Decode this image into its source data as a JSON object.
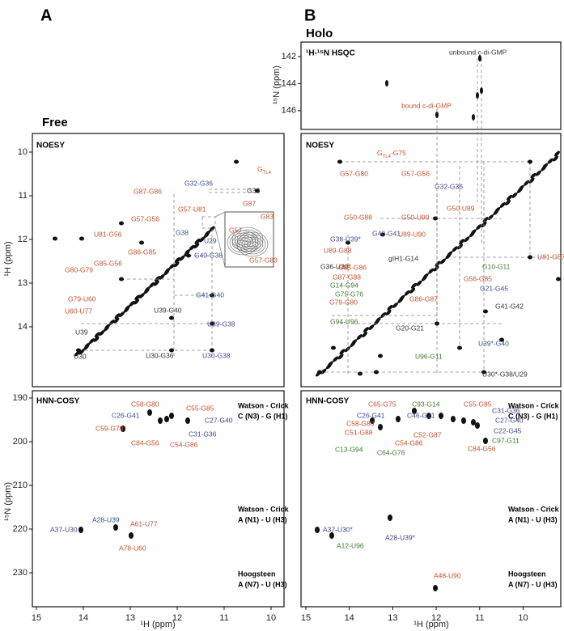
{
  "panels": [
    {
      "letter": "A",
      "title": "Free",
      "x_label": "¹H (ppm)",
      "xticks": [
        15,
        14,
        13,
        12,
        11,
        10
      ],
      "spectra": [
        {
          "name": "NOESY",
          "y_label": "¹H (ppm)",
          "yticks": [
            10,
            11,
            12,
            13,
            14
          ],
          "labels": [
            {
              "text": "G",
              "sub": "TL4"
            },
            "G32-G36",
            "G32",
            "G87-G86",
            "G87",
            "G57-U81",
            "G38",
            "G57",
            "G83",
            "G57-G83",
            "U81-G56",
            "G57-G56",
            "G86-G85",
            "U29",
            "G40-G38",
            "G85-G56",
            "G80-G79",
            "G41-G40",
            "G79-U60",
            "U60-U77",
            "U39-G40",
            "U39-G38",
            "U39",
            "U30-G36",
            "U30-G38",
            "U30"
          ]
        },
        {
          "name": "HNN-COSY",
          "y_label": "¹⁵N (ppm)",
          "yticks": [
            190,
            200,
            210,
            220,
            230
          ],
          "pair_types": [
            [
              "Watson - Crick",
              "C (N3) - G (H1)"
            ],
            [
              "Watson - Crick",
              "A (N1) - U (H3)"
            ],
            [
              "Hoogsteen",
              "A (N7) - U (H3)"
            ]
          ],
          "labels": [
            "C58-G80",
            "C55-G85",
            "C26-G41",
            "C27-G40",
            "C59-G79",
            "C31-G36",
            "C84-G56",
            "C54-G86",
            "A28-U39",
            "A61-U77",
            "A37-U30",
            "A78-U60"
          ]
        }
      ]
    },
    {
      "letter": "B",
      "title": "Holo",
      "x_label": "¹H (ppm)",
      "xticks": [
        15,
        14,
        13,
        12,
        11,
        10
      ],
      "spectra": [
        {
          "name": "¹H-¹⁵N HSQC",
          "y_label": "¹⁵N (ppm)",
          "yticks": [
            142,
            144,
            146
          ],
          "labels": [
            "unbound c-di-GMP",
            "bound c-di-GMP"
          ]
        },
        {
          "name": "NOESY",
          "labels": [
            {
              "text": "G",
              "sub": "TL4",
              "tail": "-G75"
            },
            "G57-G80",
            "G57-G56",
            "G32-G36",
            "G50-G88",
            "G50-U90",
            "G50-U89",
            "G38-U39*",
            "G40-G41",
            "U89-U90",
            "U81-G57",
            "U89-G88",
            "G36-U30*",
            "gIH1-G14",
            "G10-G11",
            "G85-G86",
            "G56-G85",
            "G87-G88",
            "G14-G94",
            "G21-G45",
            "G75-G76",
            "G86-G87",
            "G79-G80",
            "G41-G42",
            "G94-U96",
            "G20-G21",
            "U39*-G40",
            "U96-G11",
            "U30*-G38/U29"
          ]
        },
        {
          "name": "HNN-COSY",
          "pair_types": [
            [
              "Watson - Crick",
              "C (N3) - G (H1)"
            ],
            [
              "Watson - Crick",
              "A (N1) - U (H3)"
            ],
            [
              "Hoogsteen",
              "A (N7) - U (H3)"
            ]
          ],
          "labels": [
            "C65-G75",
            "C93-G14",
            "C55-G85",
            "C31-G36",
            "C26-G41",
            "C46-G21",
            "C27-G40",
            "C58-G80",
            "C22-G45",
            "C51-G88",
            "C52-G87",
            "C97-G11",
            "C54-G86",
            "C13-G94",
            "C84-G56",
            "C64-G76",
            "A37-U30*",
            "A12-U96",
            "A28-U39*",
            "A48-U90"
          ]
        }
      ]
    }
  ]
}
